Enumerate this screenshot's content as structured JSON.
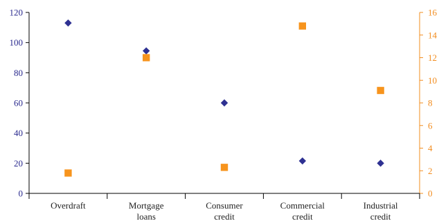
{
  "chart_data": {
    "type": "scatter",
    "categories": [
      [
        "Overdraft"
      ],
      [
        "Mortgage",
        "loans"
      ],
      [
        "Consumer",
        "credit"
      ],
      [
        "Commercial",
        "credit"
      ],
      [
        "Industrial",
        "credit"
      ]
    ],
    "series": [
      {
        "axis": "left",
        "marker": "diamond",
        "color": "#2e3192",
        "values": [
          113,
          94.5,
          60,
          21.5,
          20
        ]
      },
      {
        "axis": "right",
        "marker": "square",
        "color": "#f7941d",
        "values": [
          1.8,
          12,
          2.3,
          14.8,
          9.1
        ]
      }
    ],
    "y_left": {
      "min": 0,
      "max": 120,
      "ticks": [
        "0",
        "20",
        "40",
        "60",
        "80",
        "100",
        "120"
      ],
      "color": "#2a2a8e"
    },
    "y_right": {
      "min": 0,
      "max": 16,
      "ticks": [
        "0",
        "2",
        "4",
        "6",
        "8",
        "10",
        "12",
        "14",
        "16"
      ],
      "color": "#f28c1e"
    },
    "grid": false,
    "legend": "none"
  }
}
